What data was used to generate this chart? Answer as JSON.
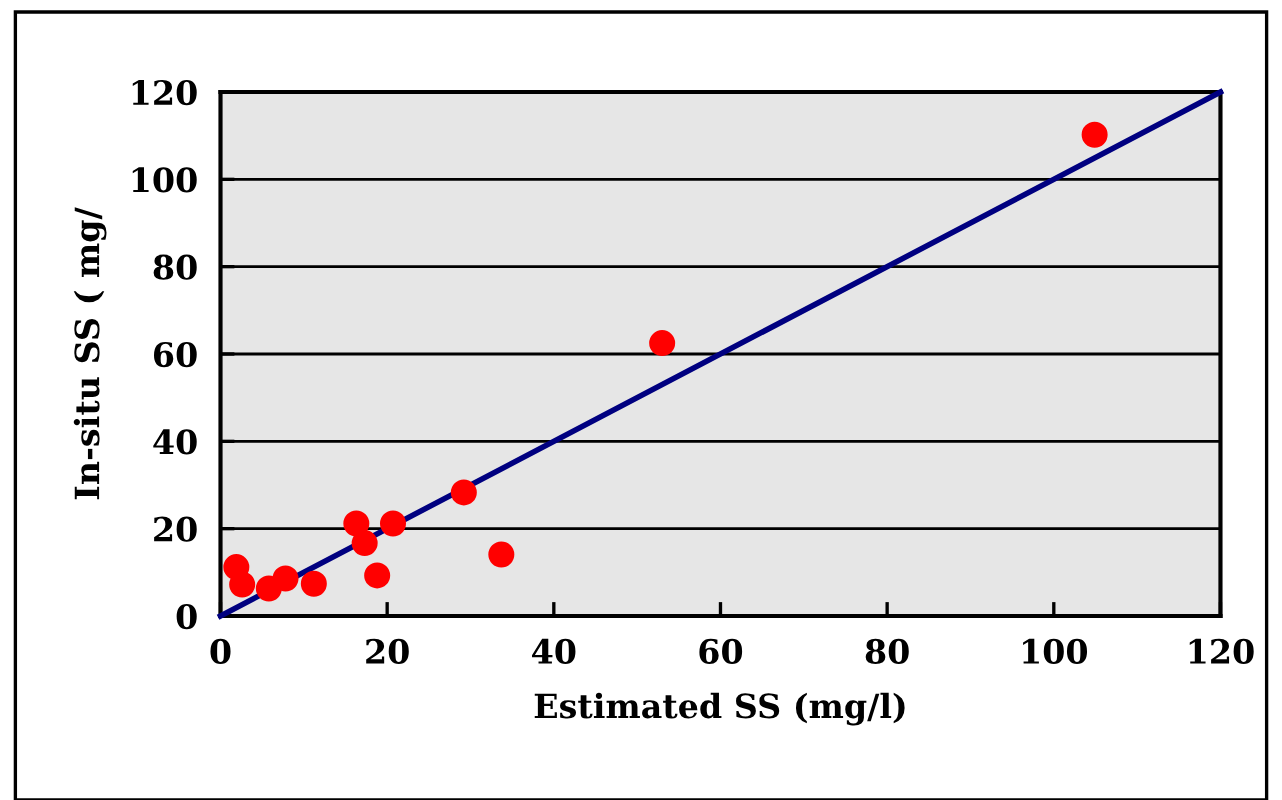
{
  "chart_data": {
    "type": "scatter",
    "xlabel": "Estimated SS (mg/l)",
    "ylabel": "In-situ SS ( mg/",
    "xlim": [
      0,
      120
    ],
    "ylim": [
      0,
      120
    ],
    "xticks": [
      0,
      20,
      40,
      60,
      80,
      100,
      120
    ],
    "yticks": [
      0,
      20,
      40,
      60,
      80,
      100,
      120
    ],
    "grid": "y",
    "series": [
      {
        "color": "#ff0000",
        "marker": "circle",
        "x": [
          1.9,
          2.6,
          5.8,
          7.8,
          11.2,
          16.3,
          17.3,
          18.8,
          20.7,
          29.2,
          33.7,
          53.0,
          104.9
        ],
        "values": [
          11.2,
          7.2,
          6.3,
          8.6,
          7.4,
          21.2,
          16.7,
          9.3,
          21.2,
          28.3,
          14.1,
          62.5,
          110.2
        ]
      },
      {
        "type": "line",
        "color": "#000080",
        "x": [
          0,
          120
        ],
        "values": [
          0,
          120
        ]
      }
    ]
  }
}
